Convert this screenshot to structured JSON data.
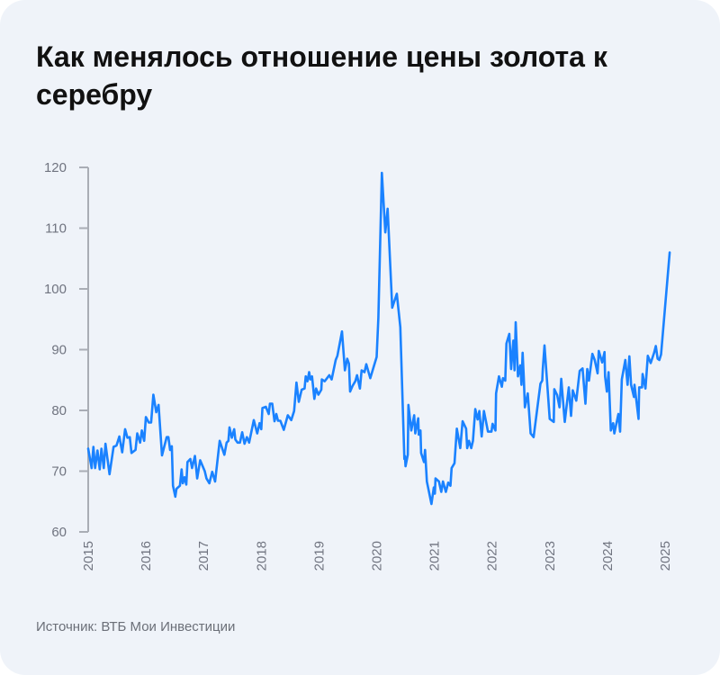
{
  "title": "Как менялось отношение цены золота к серебру",
  "source": "Источник: ВТБ Мои Инвестиции",
  "colors": {
    "line": "#1a82ff",
    "background": "#eff3f9",
    "axis": "#a9adb5"
  },
  "chart_data": {
    "type": "line",
    "title": "Как менялось отношение цены золота к серебру",
    "xlabel": "",
    "ylabel": "",
    "ylim": [
      60,
      120
    ],
    "xlim": [
      2015,
      2025.1
    ],
    "yticks": [
      "60",
      "70",
      "80",
      "90",
      "100",
      "110",
      "120"
    ],
    "xticks": [
      "2015",
      "2016",
      "2017",
      "2018",
      "2019",
      "2020",
      "2021",
      "2022",
      "2023",
      "2024",
      "2025"
    ],
    "grid": false,
    "series": [
      {
        "x": [
          2015.0,
          2015.06,
          2015.09,
          2015.12,
          2015.16,
          2015.2,
          2015.23,
          2015.27,
          2015.3,
          2015.37,
          2015.44,
          2015.49,
          2015.54,
          2015.59,
          2015.64,
          2015.68,
          2015.72,
          2015.75,
          2015.82,
          2015.85,
          2015.9,
          2015.93,
          2015.97,
          2016.0,
          2016.05,
          2016.09,
          2016.13,
          2016.18,
          2016.22,
          2016.28,
          2016.36,
          2016.39,
          2016.42,
          2016.45,
          2016.47,
          2016.51,
          2016.53,
          2016.59,
          2016.62,
          2016.64,
          2016.67,
          2016.7,
          2016.72,
          2016.77,
          2016.8,
          2016.85,
          2016.89,
          2016.94,
          2017.02,
          2017.05,
          2017.1,
          2017.15,
          2017.2,
          2017.28,
          2017.36,
          2017.4,
          2017.43,
          2017.45,
          2017.49,
          2017.53,
          2017.55,
          2017.59,
          2017.63,
          2017.67,
          2017.71,
          2017.75,
          2017.79,
          2017.87,
          2017.93,
          2017.97,
          2018.0,
          2018.02,
          2018.08,
          2018.13,
          2018.15,
          2018.19,
          2018.23,
          2018.26,
          2018.29,
          2018.33,
          2018.39,
          2018.46,
          2018.52,
          2018.57,
          2018.61,
          2018.65,
          2018.7,
          2018.75,
          2018.77,
          2018.8,
          2018.83,
          2018.85,
          2018.88,
          2018.92,
          2018.95,
          2018.99,
          2019.04,
          2019.05,
          2019.1,
          2019.14,
          2019.18,
          2019.22,
          2019.29,
          2019.32,
          2019.4,
          2019.45,
          2019.49,
          2019.52,
          2019.54,
          2019.58,
          2019.63,
          2019.66,
          2019.71,
          2019.74,
          2019.79,
          2019.82,
          2019.89,
          2020.0,
          2020.03,
          2020.09,
          2020.15,
          2020.19,
          2020.27,
          2020.35,
          2020.41,
          2020.48,
          2020.49,
          2020.5,
          2020.54,
          2020.55,
          2020.6,
          2020.65,
          2020.67,
          2020.72,
          2020.73,
          2020.76,
          2020.77,
          2020.82,
          2020.84,
          2020.87,
          2020.95,
          2020.99,
          2021.01,
          2021.02,
          2021.08,
          2021.12,
          2021.15,
          2021.2,
          2021.24,
          2021.28,
          2021.3,
          2021.35,
          2021.39,
          2021.45,
          2021.49,
          2021.55,
          2021.57,
          2021.6,
          2021.64,
          2021.67,
          2021.71,
          2021.75,
          2021.78,
          2021.82,
          2021.86,
          2021.93,
          2021.99,
          2022.01,
          2022.06,
          2022.07,
          2022.12,
          2022.17,
          2022.19,
          2022.23,
          2022.25,
          2022.3,
          2022.33,
          2022.37,
          2022.39,
          2022.41,
          2022.45,
          2022.49,
          2022.51,
          2022.53,
          2022.55,
          2022.57,
          2022.62,
          2022.67,
          2022.72,
          2022.84,
          2022.87,
          2022.88,
          2022.91,
          2023.0,
          2023.07,
          2023.08,
          2023.13,
          2023.17,
          2023.2,
          2023.26,
          2023.33,
          2023.37,
          2023.4,
          2023.46,
          2023.52,
          2023.57,
          2023.62,
          2023.65,
          2023.68,
          2023.74,
          2023.78,
          2023.83,
          2023.85,
          2023.91,
          2023.95,
          2023.96,
          2023.99,
          2024.02,
          2024.06,
          2024.1,
          2024.12,
          2024.19,
          2024.22,
          2024.25,
          2024.31,
          2024.35,
          2024.38,
          2024.41,
          2024.46,
          2024.47,
          2024.54,
          2024.55,
          2024.6,
          2024.61,
          2024.66,
          2024.7,
          2024.75,
          2024.81,
          2024.84,
          2024.87,
          2024.9,
          2024.93,
          2025.08
        ],
        "y": [
          73.7,
          70.5,
          74.0,
          70.5,
          73.4,
          70.3,
          73.7,
          70.5,
          74.5,
          69.5,
          74.0,
          74.2,
          75.7,
          73.1,
          76.9,
          75.5,
          75.6,
          73.0,
          73.5,
          76.2,
          74.7,
          76.7,
          75.0,
          78.9,
          78.0,
          78.0,
          82.6,
          79.7,
          80.9,
          72.6,
          75.6,
          75.6,
          73.5,
          74.1,
          67.6,
          65.8,
          67.1,
          67.6,
          70.3,
          68.0,
          69.0,
          67.8,
          71.5,
          72.0,
          70.5,
          72.5,
          68.8,
          71.8,
          70.0,
          68.8,
          68.0,
          69.9,
          68.3,
          75.0,
          72.7,
          74.7,
          75.0,
          77.2,
          75.5,
          76.9,
          75.2,
          74.7,
          74.7,
          76.4,
          74.5,
          75.6,
          74.7,
          78.4,
          76.2,
          77.9,
          76.9,
          80.4,
          80.6,
          79.4,
          81.1,
          81.1,
          78.2,
          79.4,
          78.3,
          78.3,
          76.8,
          79.2,
          78.4,
          79.9,
          84.6,
          81.4,
          83.4,
          83.6,
          85.6,
          84.8,
          86.3,
          85.1,
          85.6,
          81.9,
          83.6,
          82.6,
          83.4,
          85.1,
          84.8,
          85.3,
          85.8,
          85.1,
          88.3,
          89.0,
          93.0,
          86.6,
          88.5,
          87.7,
          83.1,
          84.0,
          84.8,
          85.8,
          83.6,
          86.6,
          86.3,
          87.6,
          85.3,
          88.8,
          95.2,
          119.1,
          109.3,
          113.2,
          96.9,
          99.2,
          93.7,
          72.0,
          72.5,
          70.8,
          72.7,
          80.9,
          76.7,
          79.2,
          76.2,
          78.7,
          76.0,
          76.7,
          73.0,
          71.5,
          73.5,
          68.3,
          64.6,
          67.3,
          66.3,
          68.8,
          68.3,
          66.6,
          68.3,
          66.6,
          68.1,
          67.6,
          70.5,
          71.3,
          77.0,
          73.8,
          78.2,
          77.0,
          73.8,
          75.0,
          73.8,
          75.0,
          80.2,
          78.5,
          79.9,
          75.7,
          79.9,
          76.5,
          76.5,
          77.8,
          76.7,
          82.8,
          85.6,
          83.9,
          85.3,
          84.9,
          91.0,
          92.6,
          86.8,
          91.5,
          86.6,
          94.5,
          85.6,
          87.4,
          84.2,
          89.5,
          85.4,
          80.5,
          82.8,
          76.2,
          75.6,
          84.4,
          84.9,
          86.8,
          90.7,
          78.6,
          78.1,
          83.5,
          82.5,
          80.5,
          85.2,
          78.1,
          83.8,
          79.1,
          83.3,
          81.6,
          86.5,
          86.9,
          81.1,
          86.8,
          84.9,
          89.3,
          88.3,
          86.1,
          89.8,
          87.9,
          89.6,
          85.6,
          83.1,
          86.3,
          76.7,
          77.9,
          76.2,
          79.4,
          76.5,
          85.1,
          88.3,
          84.2,
          88.9,
          84.2,
          82.2,
          84.2,
          78.6,
          83.8,
          83.8,
          86.0,
          83.6,
          89.0,
          87.8,
          89.5,
          90.6,
          88.5,
          88.3,
          89.2,
          106.0
        ]
      }
    ]
  }
}
